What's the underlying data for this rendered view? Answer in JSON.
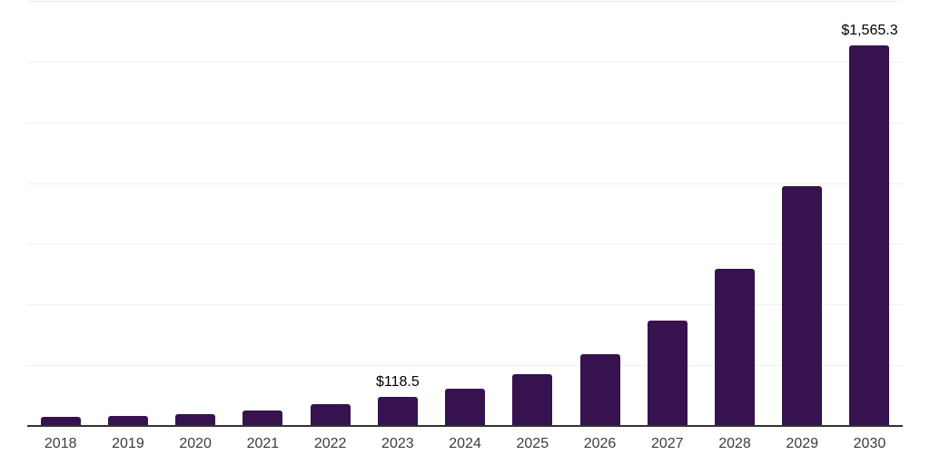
{
  "chart_data": {
    "type": "bar",
    "title": "",
    "xlabel": "",
    "ylabel": "",
    "categories": [
      "2018",
      "2019",
      "2020",
      "2021",
      "2022",
      "2023",
      "2024",
      "2025",
      "2026",
      "2027",
      "2028",
      "2029",
      "2030"
    ],
    "values": [
      37,
      42,
      50,
      65,
      88,
      118.5,
      155,
      212,
      296,
      432,
      646,
      988,
      1565.3
    ],
    "data_labels": [
      "",
      "",
      "",
      "",
      "",
      "$118.5",
      "",
      "",
      "",
      "",
      "",
      "",
      "$1,565.3"
    ],
    "ylim": [
      0,
      1750
    ],
    "gridline_step": 250,
    "grid": "on",
    "legend": "none",
    "bar_color": "#36124f",
    "axis_line_color": "#333333",
    "gridline_color": "#efefef",
    "xtick_color": "#3c3c3c",
    "data_label_color": "#000000"
  }
}
